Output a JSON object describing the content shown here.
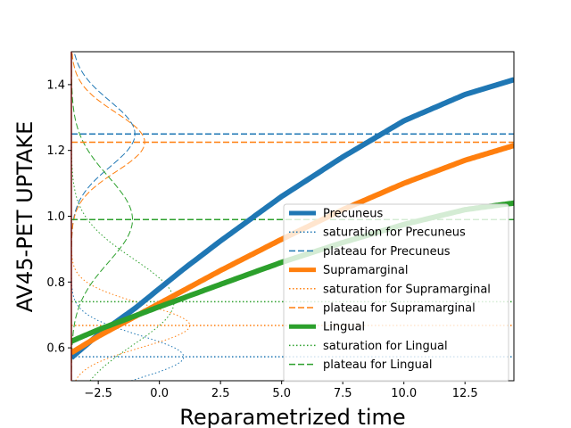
{
  "chart_data": {
    "type": "line",
    "title": "",
    "xlabel": "Reparametrized time",
    "ylabel": "AV45-PET UPTAKE",
    "xlim": [
      -3.6,
      14.5
    ],
    "ylim": [
      0.5,
      1.5
    ],
    "xticks": [
      -2.5,
      0.0,
      2.5,
      5.0,
      7.5,
      10.0,
      12.5
    ],
    "xtick_labels": [
      "−2.5",
      "0.0",
      "2.5",
      "5.0",
      "7.5",
      "10.0",
      "12.5"
    ],
    "yticks": [
      0.6,
      0.8,
      1.0,
      1.2,
      1.4
    ],
    "ytick_labels": [
      "0.6",
      "0.8",
      "1.0",
      "1.2",
      "1.4"
    ],
    "grid": false,
    "legend_position": "lower-right",
    "colors": {
      "Precuneus": "#1f77b4",
      "Supramarginal": "#ff7f0e",
      "Lingual": "#2ca02c"
    },
    "series": [
      {
        "name": "Precuneus",
        "style": "solid-thick",
        "color": "#1f77b4",
        "x": [
          -3.6,
          -2.5,
          -1.0,
          0.0,
          1.0,
          2.5,
          5.0,
          7.5,
          10.0,
          12.5,
          14.5
        ],
        "y": [
          0.57,
          0.64,
          0.72,
          0.78,
          0.84,
          0.925,
          1.06,
          1.18,
          1.29,
          1.37,
          1.415
        ]
      },
      {
        "name": "saturation for Precuneus",
        "style": "dotted",
        "color": "#1f77b4",
        "x": [
          -3.6,
          14.5
        ],
        "y": [
          0.573,
          0.573
        ]
      },
      {
        "name": "plateau for Precuneus",
        "style": "dashed",
        "color": "#1f77b4",
        "x": [
          -3.6,
          14.5
        ],
        "y": [
          1.25,
          1.25
        ]
      },
      {
        "name": "Supramarginal",
        "style": "solid-thick",
        "color": "#ff7f0e",
        "x": [
          -3.6,
          -2.5,
          -1.0,
          0.0,
          1.0,
          2.5,
          5.0,
          7.5,
          10.0,
          12.5,
          14.5
        ],
        "y": [
          0.585,
          0.635,
          0.695,
          0.735,
          0.775,
          0.835,
          0.93,
          1.02,
          1.1,
          1.17,
          1.215
        ]
      },
      {
        "name": "saturation for Supramarginal",
        "style": "dotted",
        "color": "#ff7f0e",
        "x": [
          -3.6,
          14.5
        ],
        "y": [
          0.668,
          0.668
        ]
      },
      {
        "name": "plateau for Supramarginal",
        "style": "dashed",
        "color": "#ff7f0e",
        "x": [
          -3.6,
          14.5
        ],
        "y": [
          1.225,
          1.225
        ]
      },
      {
        "name": "Lingual",
        "style": "solid-thick",
        "color": "#2ca02c",
        "x": [
          -3.6,
          -2.5,
          -1.0,
          0.0,
          1.0,
          2.5,
          5.0,
          7.5,
          10.0,
          12.5,
          14.5
        ],
        "y": [
          0.62,
          0.655,
          0.697,
          0.725,
          0.752,
          0.793,
          0.86,
          0.92,
          0.975,
          1.02,
          1.04
        ]
      },
      {
        "name": "saturation for Lingual",
        "style": "dotted",
        "color": "#2ca02c",
        "x": [
          -3.6,
          14.5
        ],
        "y": [
          0.74,
          0.74
        ]
      },
      {
        "name": "plateau for Lingual",
        "style": "dashed",
        "color": "#2ca02c",
        "x": [
          -3.6,
          14.5
        ],
        "y": [
          0.99,
          0.99
        ]
      }
    ],
    "distributions": [
      {
        "of": "saturation for Precuneus",
        "style": "dotted",
        "color": "#1f77b4",
        "center": 0.573,
        "sd": 0.065,
        "peak_x": 1.0
      },
      {
        "of": "plateau for Precuneus",
        "style": "dashed",
        "color": "#1f77b4",
        "center": 1.25,
        "sd": 0.1,
        "peak_x": -1.0
      },
      {
        "of": "saturation for Supramarginal",
        "style": "dotted",
        "color": "#ff7f0e",
        "center": 0.668,
        "sd": 0.065,
        "peak_x": 1.25
      },
      {
        "of": "plateau for Supramarginal",
        "style": "dashed",
        "color": "#ff7f0e",
        "center": 1.225,
        "sd": 0.09,
        "peak_x": -0.6
      },
      {
        "of": "saturation for Lingual",
        "style": "dotted",
        "color": "#2ca02c",
        "center": 0.74,
        "sd": 0.13,
        "peak_x": 0.6
      },
      {
        "of": "plateau for Lingual",
        "style": "dashed",
        "color": "#2ca02c",
        "center": 0.99,
        "sd": 0.13,
        "peak_x": -1.1
      }
    ]
  }
}
